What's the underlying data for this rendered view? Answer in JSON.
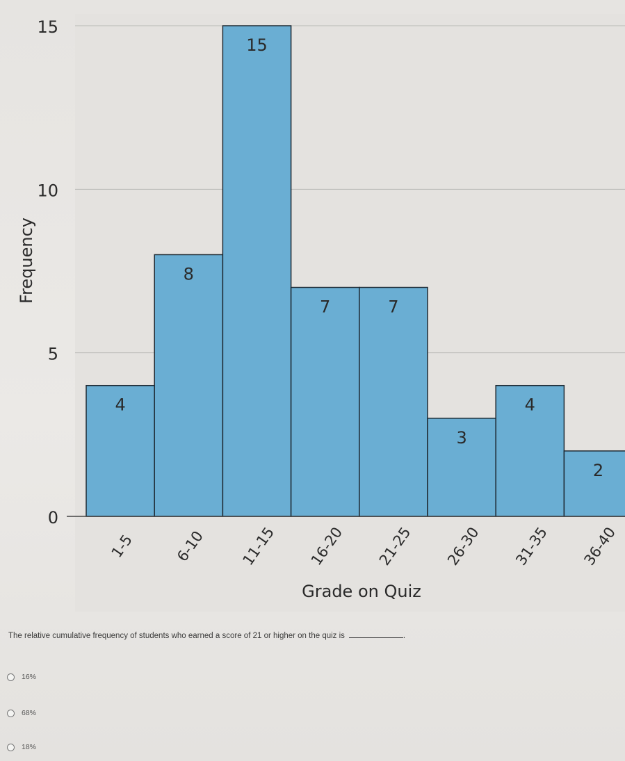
{
  "chart_data": {
    "type": "bar",
    "categories": [
      "1-5",
      "6-10",
      "11-15",
      "16-20",
      "21-25",
      "26-30",
      "31-35",
      "36-40"
    ],
    "values": [
      4,
      8,
      15,
      7,
      7,
      3,
      4,
      2
    ],
    "xlabel": "Grade on Quiz",
    "ylabel": "Frequency",
    "ylim": [
      0,
      15
    ],
    "yticks": [
      0,
      5,
      10,
      15
    ],
    "grid": true,
    "bar_color": "#6aaed3",
    "bar_edge_color": "#1e2a33"
  },
  "question": {
    "text": "The relative cumulative frequency of students who earned a score of 21 or higher on the quiz is",
    "options": [
      "16%",
      "68%",
      "18%"
    ]
  }
}
